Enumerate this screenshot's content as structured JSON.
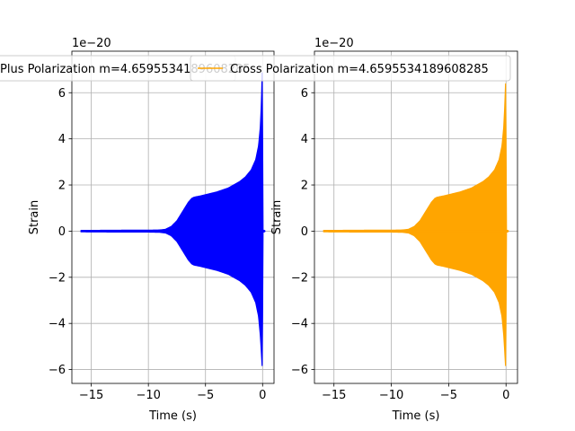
{
  "colors": {
    "plus": "#0000ff",
    "cross": "#ffa500",
    "grid": "#b0b0b0",
    "axis": "#000000",
    "legend_edge": "#cccccc"
  },
  "chart_data": [
    {
      "type": "line",
      "title": "",
      "xlabel": "Time (s)",
      "ylabel": "Strain",
      "offset_text": "1e−20",
      "xlim": [
        -16.7,
        1.0
      ],
      "ylim": [
        -6.6,
        7.8
      ],
      "xticks": [
        -15,
        -10,
        -5,
        0
      ],
      "xtick_labels": [
        "−15",
        "−10",
        "−5",
        "0"
      ],
      "yticks": [
        -6,
        -4,
        -2,
        0,
        2,
        4,
        6
      ],
      "ytick_labels": [
        "−6",
        "−4",
        "−2",
        "0",
        "2",
        "4",
        "6"
      ],
      "grid": true,
      "legend": "top",
      "series": [
        {
          "name": "Plus Polarization m=4.6595534189608285",
          "color": "#0000ff",
          "envelope": {
            "t": [
              -15.9,
              -12.0,
              -10.0,
              -9.0,
              -8.5,
              -8.0,
              -7.5,
              -7.0,
              -6.5,
              -6.2,
              -6.0,
              -5.5,
              -5.0,
              -4.0,
              -3.0,
              -2.0,
              -1.5,
              -1.0,
              -0.6,
              -0.35,
              -0.2,
              -0.1,
              -0.05,
              -0.02,
              0.0,
              0.02,
              0.2
            ],
            "upper": [
              0.03,
              0.04,
              0.04,
              0.05,
              0.08,
              0.2,
              0.45,
              0.85,
              1.25,
              1.42,
              1.47,
              1.52,
              1.58,
              1.7,
              1.87,
              2.15,
              2.35,
              2.65,
              3.1,
              3.7,
              4.5,
              5.6,
              6.6,
              7.5,
              4.0,
              0.05,
              0.02
            ],
            "lower": [
              -0.03,
              -0.04,
              -0.04,
              -0.05,
              -0.08,
              -0.2,
              -0.45,
              -0.85,
              -1.25,
              -1.42,
              -1.47,
              -1.52,
              -1.58,
              -1.7,
              -1.87,
              -2.15,
              -2.35,
              -2.65,
              -3.1,
              -3.7,
              -4.5,
              -5.3,
              -5.8,
              -5.9,
              -3.5,
              -0.05,
              -0.02
            ]
          }
        }
      ]
    },
    {
      "type": "line",
      "title": "",
      "xlabel": "Time (s)",
      "ylabel": "Strain",
      "offset_text": "1e−20",
      "xlim": [
        -16.7,
        1.0
      ],
      "ylim": [
        -6.6,
        7.8
      ],
      "xticks": [
        -15,
        -10,
        -5,
        0
      ],
      "xtick_labels": [
        "−15",
        "−10",
        "−5",
        "0"
      ],
      "yticks": [
        -6,
        -4,
        -2,
        0,
        2,
        4,
        6
      ],
      "ytick_labels": [
        "−6",
        "−4",
        "−2",
        "0",
        "2",
        "4",
        "6"
      ],
      "grid": true,
      "legend": "top",
      "series": [
        {
          "name": "Cross Polarization m=4.6595534189608285",
          "color": "#ffa500",
          "envelope": {
            "t": [
              -15.9,
              -12.0,
              -10.0,
              -9.0,
              -8.5,
              -8.0,
              -7.5,
              -7.0,
              -6.5,
              -6.2,
              -6.0,
              -5.5,
              -5.0,
              -4.0,
              -3.0,
              -2.0,
              -1.5,
              -1.0,
              -0.6,
              -0.35,
              -0.2,
              -0.1,
              -0.05,
              -0.02,
              0.0,
              0.02,
              0.2
            ],
            "upper": [
              0.03,
              0.04,
              0.04,
              0.05,
              0.08,
              0.2,
              0.45,
              0.85,
              1.25,
              1.42,
              1.47,
              1.52,
              1.58,
              1.7,
              1.87,
              2.15,
              2.35,
              2.65,
              3.1,
              3.7,
              4.5,
              5.5,
              6.3,
              6.6,
              3.8,
              0.05,
              0.02
            ],
            "lower": [
              -0.03,
              -0.04,
              -0.04,
              -0.05,
              -0.08,
              -0.2,
              -0.45,
              -0.85,
              -1.25,
              -1.42,
              -1.47,
              -1.52,
              -1.58,
              -1.7,
              -1.87,
              -2.15,
              -2.35,
              -2.65,
              -3.1,
              -3.7,
              -4.5,
              -5.3,
              -5.8,
              -5.9,
              -3.5,
              -0.05,
              -0.02
            ]
          }
        }
      ]
    }
  ]
}
